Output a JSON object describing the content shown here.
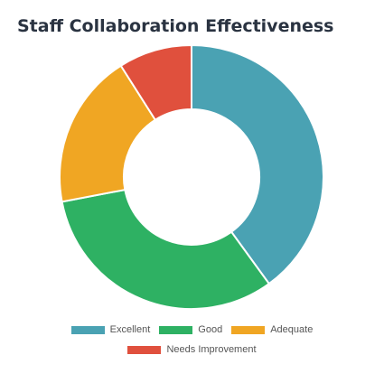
{
  "chart_data": {
    "type": "pie",
    "variant": "doughnut",
    "title": "Staff Collaboration Effectiveness",
    "categories": [
      "Excellent",
      "Good",
      "Adequate",
      "Needs Improvement"
    ],
    "values": [
      40,
      32,
      19,
      9
    ],
    "colors": [
      "#4aa2b3",
      "#2eb163",
      "#f0a623",
      "#e0503d"
    ],
    "legend_position": "bottom"
  }
}
